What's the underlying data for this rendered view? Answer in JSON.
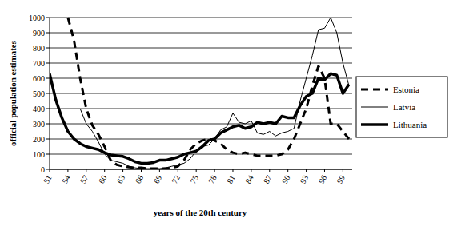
{
  "chart_data": {
    "type": "line",
    "x_label": "years of the 20th century",
    "y_label": "official population estimates",
    "x": [
      51,
      52,
      53,
      54,
      55,
      56,
      57,
      58,
      59,
      60,
      61,
      62,
      63,
      64,
      65,
      66,
      67,
      68,
      69,
      70,
      71,
      72,
      73,
      74,
      75,
      76,
      77,
      78,
      79,
      80,
      81,
      82,
      83,
      84,
      85,
      86,
      87,
      88,
      89,
      90,
      91,
      92,
      93,
      94,
      95,
      96,
      97,
      98,
      99,
      100
    ],
    "xlim": [
      51,
      100
    ],
    "xticks": [
      51,
      54,
      57,
      60,
      63,
      66,
      69,
      72,
      75,
      78,
      81,
      84,
      87,
      90,
      93,
      96,
      99
    ],
    "ylim": [
      0,
      1000
    ],
    "yticks": [
      0,
      100,
      200,
      300,
      400,
      500,
      600,
      700,
      800,
      900,
      1000
    ],
    "grid": true,
    "legend": "right",
    "series": [
      {
        "name": "Estonia",
        "color": "#000000",
        "line_style": "dashed",
        "values": [
          null,
          null,
          null,
          1000,
          850,
          600,
          400,
          290,
          230,
          150,
          60,
          30,
          20,
          15,
          10,
          10,
          5,
          5,
          5,
          5,
          10,
          20,
          60,
          130,
          170,
          190,
          200,
          190,
          170,
          130,
          110,
          100,
          110,
          100,
          90,
          90,
          90,
          90,
          100,
          130,
          200,
          300,
          400,
          550,
          680,
          600,
          300,
          300,
          250,
          200
        ]
      },
      {
        "name": "Latvia",
        "color": "#000000",
        "line_style": "thin",
        "values": [
          null,
          null,
          null,
          null,
          null,
          400,
          300,
          250,
          180,
          100,
          60,
          50,
          40,
          20,
          10,
          5,
          5,
          5,
          5,
          10,
          20,
          30,
          40,
          70,
          120,
          150,
          160,
          200,
          260,
          280,
          370,
          310,
          300,
          320,
          240,
          230,
          250,
          220,
          240,
          250,
          270,
          450,
          600,
          750,
          920,
          930,
          1000,
          900,
          700,
          550
        ]
      },
      {
        "name": "Lithuania",
        "color": "#000000",
        "line_style": "thick",
        "values": [
          630,
          460,
          340,
          250,
          200,
          170,
          150,
          140,
          130,
          110,
          95,
          90,
          85,
          70,
          50,
          40,
          40,
          45,
          60,
          60,
          70,
          80,
          100,
          110,
          120,
          150,
          190,
          200,
          240,
          260,
          280,
          290,
          270,
          280,
          310,
          300,
          310,
          300,
          350,
          340,
          340,
          420,
          480,
          500,
          600,
          590,
          630,
          620,
          500,
          560
        ]
      }
    ]
  }
}
